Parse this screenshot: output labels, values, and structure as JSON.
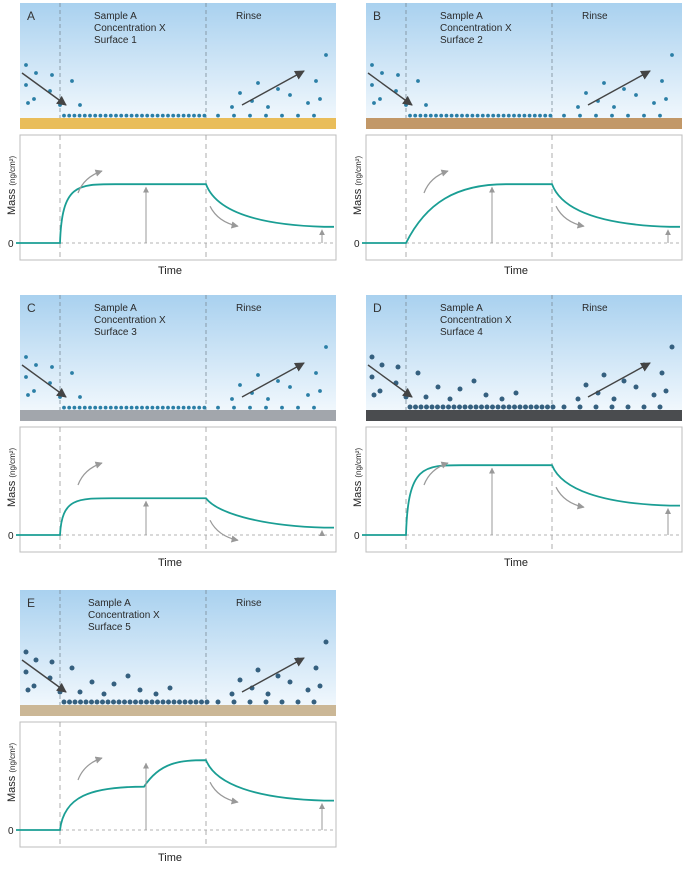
{
  "colors": {
    "sky_top": "#a9d1ef",
    "sky_bottom": "#f7fbfe",
    "curve": "#1a9e94",
    "molecule": "#2b7fa6",
    "molecule_dark": "#35607f",
    "arrow_dark": "#444444",
    "arrow_gray": "#999999"
  },
  "labels": {
    "sample": "Sample A",
    "concentration": "Concentration X",
    "rinse": "Rinse",
    "y_axis": "Mass",
    "y_unit": "(ng/cm²)",
    "x_axis": "Time",
    "zero": "0"
  },
  "panels": [
    {
      "letter": "A",
      "surface": "Surface 1",
      "surface_color": "#e9bd5a",
      "molecule_style": "small",
      "adsorbed_level": 0.8,
      "remaining_level": 0.22,
      "shape": "fast"
    },
    {
      "letter": "B",
      "surface": "Surface 2",
      "surface_color": "#c29868",
      "molecule_style": "small",
      "adsorbed_level": 0.8,
      "remaining_level": 0.22,
      "shape": "slow"
    },
    {
      "letter": "C",
      "surface": "Surface 3",
      "surface_color": "#a2a6ac",
      "molecule_style": "small",
      "adsorbed_level": 0.5,
      "remaining_level": 0.1,
      "shape": "fast"
    },
    {
      "letter": "D",
      "surface": "Surface 4",
      "surface_color": "#4a4c4f",
      "molecule_style": "dark",
      "adsorbed_level": 0.95,
      "remaining_level": 0.4,
      "shape": "fast"
    },
    {
      "letter": "E",
      "surface": "Surface 5",
      "surface_color": "#cbb796",
      "molecule_style": "dark",
      "adsorbed_level": 0.95,
      "remaining_level": 0.4,
      "shape": "two-step"
    }
  ]
}
